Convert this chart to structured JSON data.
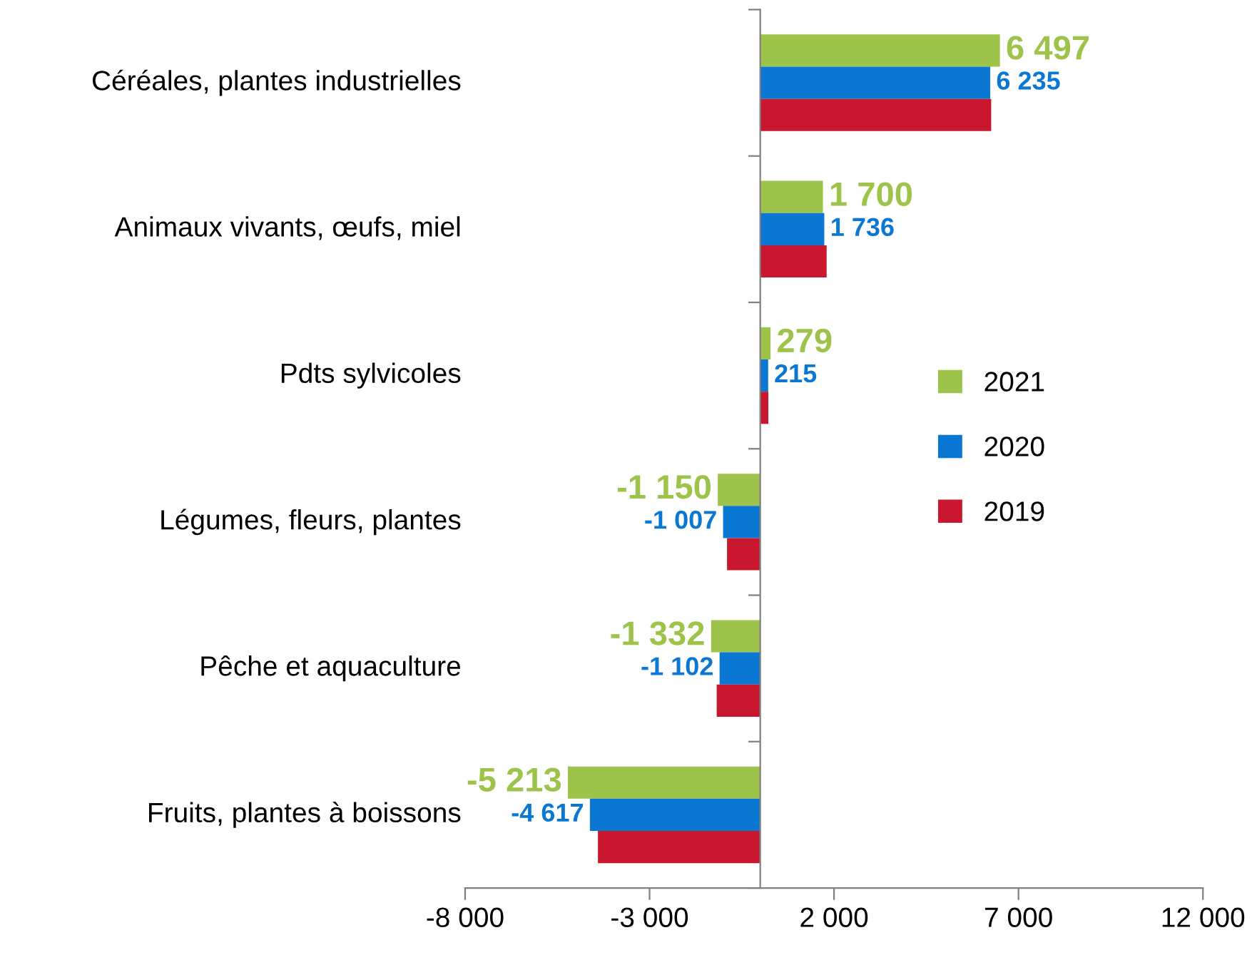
{
  "chart_data": {
    "type": "bar",
    "orientation": "horizontal",
    "categories": [
      "Céréales, plantes industrielles",
      "Animaux vivants, œufs, miel",
      "Pdts sylvicoles",
      "Légumes, fleurs, plantes",
      "Pêche et aquaculture",
      "Fruits, plantes à boissons"
    ],
    "series": [
      {
        "name": "2021",
        "color": "#9dc34a",
        "values": [
          6497,
          1700,
          279,
          -1150,
          -1332,
          -5213
        ],
        "value_labels": [
          "6 497",
          "1 700",
          "279",
          "-1 150",
          "-1 332",
          "-5 213"
        ]
      },
      {
        "name": "2020",
        "color": "#0a78d2",
        "values": [
          6235,
          1736,
          215,
          -1007,
          -1102,
          -4617
        ],
        "value_labels": [
          "6 235",
          "1 736",
          "215",
          "-1 007",
          "-1 102",
          "-4 617"
        ]
      },
      {
        "name": "2019",
        "color": "#c8172e",
        "values": [
          6260,
          1800,
          220,
          -900,
          -1180,
          -4400
        ]
      }
    ],
    "xlim": [
      -8000,
      12000
    ],
    "xticks": [
      {
        "value": -8000,
        "label": "-8 000"
      },
      {
        "value": -3000,
        "label": "-3 000"
      },
      {
        "value": 2000,
        "label": "2 000"
      },
      {
        "value": 7000,
        "label": "7 000"
      },
      {
        "value": 12000,
        "label": "12 000"
      }
    ],
    "legend": "right",
    "grid": false
  }
}
